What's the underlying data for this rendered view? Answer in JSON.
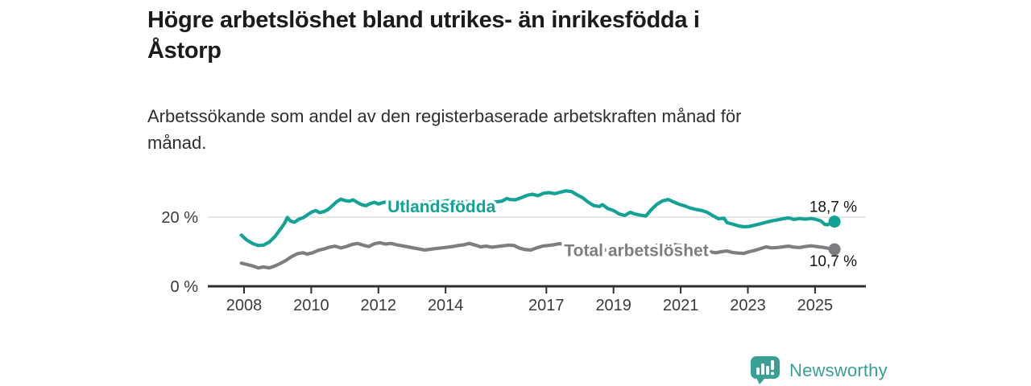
{
  "header": {
    "title_lines": [
      "Högre arbetslöshet bland utrikes- än inrikesfödda i",
      "Åstorp"
    ],
    "subtitle_lines": [
      "Arbetssökande som andel av den registerbaserade arbetskraften månad för",
      "månad."
    ]
  },
  "footer": {
    "brand": "Newsworthy",
    "brand_color": "#3aa096"
  },
  "chart_data": {
    "type": "line",
    "title": "Högre arbetslöshet bland utrikes- än inrikesfödda i Åstorp",
    "subtitle": "Arbetssökande som andel av den registerbaserade arbetskraften månad för månad.",
    "xlabel": "",
    "ylabel": "",
    "xlim": [
      2007.3,
      2026.5
    ],
    "ylim": [
      0,
      34
    ],
    "grid": "single-horizontal-at-20",
    "legend_position": "inline-on-line",
    "axis_color": "#2f2f2f",
    "grid_color": "#d8d8d8",
    "text_color": "#3b3b3b",
    "value_label_color": "#141414",
    "x_ticks": [
      2008,
      2010,
      2012,
      2014,
      2017,
      2019,
      2021,
      2023,
      2025
    ],
    "y_ticks": [
      {
        "value": 0,
        "label": "0 %"
      },
      {
        "value": 20,
        "label": "20 %"
      }
    ],
    "series": [
      {
        "name": "Utlandsfödda",
        "color": "#14a296",
        "end_label": "18,7 %",
        "end_value": 18.7,
        "end_label_side": "above",
        "label_pos": {
          "x": 2013.88,
          "y": 23.0
        },
        "points": [
          [
            2007.92,
            14.8
          ],
          [
            2008.08,
            13.4
          ],
          [
            2008.25,
            12.4
          ],
          [
            2008.42,
            11.8
          ],
          [
            2008.58,
            11.9
          ],
          [
            2008.75,
            12.8
          ],
          [
            2008.92,
            14.4
          ],
          [
            2009.08,
            16.5
          ],
          [
            2009.21,
            18.3
          ],
          [
            2009.29,
            19.9
          ],
          [
            2009.38,
            18.9
          ],
          [
            2009.5,
            18.5
          ],
          [
            2009.63,
            19.4
          ],
          [
            2009.75,
            19.8
          ],
          [
            2009.88,
            20.6
          ],
          [
            2010.0,
            21.4
          ],
          [
            2010.13,
            21.9
          ],
          [
            2010.25,
            21.3
          ],
          [
            2010.38,
            21.6
          ],
          [
            2010.5,
            22.2
          ],
          [
            2010.63,
            23.3
          ],
          [
            2010.75,
            24.4
          ],
          [
            2010.88,
            25.2
          ],
          [
            2011.0,
            24.8
          ],
          [
            2011.13,
            24.6
          ],
          [
            2011.25,
            25.0
          ],
          [
            2011.38,
            24.2
          ],
          [
            2011.5,
            23.6
          ],
          [
            2011.63,
            23.3
          ],
          [
            2011.75,
            23.9
          ],
          [
            2011.88,
            24.3
          ],
          [
            2012.0,
            23.8
          ],
          [
            2012.17,
            24.3
          ],
          [
            2012.33,
            24.5
          ],
          [
            2012.5,
            24.1
          ],
          [
            2012.67,
            24.4
          ],
          [
            2012.83,
            24.7
          ],
          [
            2013.0,
            24.3
          ],
          [
            2013.17,
            24.1
          ],
          [
            2013.33,
            24.5
          ],
          [
            2013.5,
            24.2
          ],
          [
            2013.67,
            24.6
          ],
          [
            2013.83,
            24.3
          ],
          [
            2014.0,
            24.7
          ],
          [
            2014.17,
            24.9
          ],
          [
            2014.33,
            24.5
          ],
          [
            2014.5,
            24.7
          ],
          [
            2014.67,
            24.4
          ],
          [
            2014.83,
            24.6
          ],
          [
            2015.0,
            24.3
          ],
          [
            2015.17,
            24.5
          ],
          [
            2015.33,
            24.2
          ],
          [
            2015.5,
            24.4
          ],
          [
            2015.67,
            24.6
          ],
          [
            2015.83,
            25.4
          ],
          [
            2015.92,
            25.1
          ],
          [
            2016.08,
            25.0
          ],
          [
            2016.25,
            25.6
          ],
          [
            2016.42,
            26.3
          ],
          [
            2016.58,
            26.6
          ],
          [
            2016.75,
            26.2
          ],
          [
            2016.92,
            26.9
          ],
          [
            2017.08,
            27.1
          ],
          [
            2017.25,
            26.8
          ],
          [
            2017.42,
            27.2
          ],
          [
            2017.58,
            27.6
          ],
          [
            2017.75,
            27.4
          ],
          [
            2017.92,
            26.4
          ],
          [
            2018.08,
            25.6
          ],
          [
            2018.25,
            24.3
          ],
          [
            2018.42,
            23.3
          ],
          [
            2018.58,
            23.1
          ],
          [
            2018.67,
            23.6
          ],
          [
            2018.83,
            22.5
          ],
          [
            2019.0,
            21.9
          ],
          [
            2019.17,
            20.9
          ],
          [
            2019.33,
            20.5
          ],
          [
            2019.5,
            21.4
          ],
          [
            2019.63,
            20.9
          ],
          [
            2019.79,
            20.6
          ],
          [
            2019.96,
            20.3
          ],
          [
            2020.13,
            22.2
          ],
          [
            2020.29,
            23.7
          ],
          [
            2020.46,
            24.7
          ],
          [
            2020.63,
            25.1
          ],
          [
            2020.79,
            24.4
          ],
          [
            2020.96,
            23.7
          ],
          [
            2021.13,
            23.2
          ],
          [
            2021.29,
            22.6
          ],
          [
            2021.46,
            22.2
          ],
          [
            2021.63,
            21.9
          ],
          [
            2021.79,
            21.4
          ],
          [
            2021.96,
            20.4
          ],
          [
            2022.13,
            19.5
          ],
          [
            2022.29,
            19.7
          ],
          [
            2022.38,
            18.4
          ],
          [
            2022.54,
            18.0
          ],
          [
            2022.71,
            17.5
          ],
          [
            2022.88,
            17.2
          ],
          [
            2023.04,
            17.3
          ],
          [
            2023.21,
            17.7
          ],
          [
            2023.38,
            18.1
          ],
          [
            2023.54,
            18.5
          ],
          [
            2023.71,
            18.9
          ],
          [
            2023.88,
            19.2
          ],
          [
            2024.04,
            19.5
          ],
          [
            2024.21,
            19.8
          ],
          [
            2024.38,
            19.3
          ],
          [
            2024.54,
            19.6
          ],
          [
            2024.71,
            19.4
          ],
          [
            2024.88,
            19.6
          ],
          [
            2025.04,
            19.3
          ],
          [
            2025.17,
            18.9
          ],
          [
            2025.29,
            17.9
          ],
          [
            2025.38,
            17.8
          ],
          [
            2025.46,
            18.3
          ],
          [
            2025.58,
            18.7
          ]
        ]
      },
      {
        "name": "Total arbetslöshet",
        "color": "#7d7e81",
        "end_label": "10,7 %",
        "end_value": 10.7,
        "end_label_side": "below",
        "label_pos": {
          "x": 2019.68,
          "y": 10.4
        },
        "points": [
          [
            2007.92,
            6.7
          ],
          [
            2008.08,
            6.3
          ],
          [
            2008.25,
            5.9
          ],
          [
            2008.42,
            5.3
          ],
          [
            2008.58,
            5.6
          ],
          [
            2008.75,
            5.3
          ],
          [
            2008.92,
            5.9
          ],
          [
            2009.08,
            6.6
          ],
          [
            2009.25,
            7.5
          ],
          [
            2009.42,
            8.6
          ],
          [
            2009.58,
            9.4
          ],
          [
            2009.75,
            9.7
          ],
          [
            2009.88,
            9.3
          ],
          [
            2010.04,
            9.7
          ],
          [
            2010.21,
            10.4
          ],
          [
            2010.38,
            10.8
          ],
          [
            2010.54,
            11.3
          ],
          [
            2010.71,
            11.6
          ],
          [
            2010.88,
            11.1
          ],
          [
            2011.04,
            11.5
          ],
          [
            2011.21,
            12.1
          ],
          [
            2011.38,
            12.4
          ],
          [
            2011.54,
            11.9
          ],
          [
            2011.71,
            11.5
          ],
          [
            2011.88,
            12.3
          ],
          [
            2012.04,
            12.6
          ],
          [
            2012.21,
            12.2
          ],
          [
            2012.38,
            12.4
          ],
          [
            2012.54,
            12.0
          ],
          [
            2012.71,
            11.7
          ],
          [
            2012.88,
            11.4
          ],
          [
            2013.04,
            11.1
          ],
          [
            2013.21,
            10.8
          ],
          [
            2013.38,
            10.5
          ],
          [
            2013.54,
            10.7
          ],
          [
            2013.71,
            10.9
          ],
          [
            2013.88,
            11.1
          ],
          [
            2014.04,
            11.3
          ],
          [
            2014.21,
            11.5
          ],
          [
            2014.38,
            11.8
          ],
          [
            2014.54,
            12.0
          ],
          [
            2014.71,
            12.4
          ],
          [
            2014.88,
            11.9
          ],
          [
            2015.04,
            11.4
          ],
          [
            2015.21,
            11.6
          ],
          [
            2015.38,
            11.3
          ],
          [
            2015.54,
            11.5
          ],
          [
            2015.71,
            11.7
          ],
          [
            2015.88,
            11.9
          ],
          [
            2016.04,
            11.8
          ],
          [
            2016.21,
            11.0
          ],
          [
            2016.38,
            10.6
          ],
          [
            2016.54,
            10.5
          ],
          [
            2016.71,
            11.1
          ],
          [
            2016.88,
            11.6
          ],
          [
            2017.04,
            11.8
          ],
          [
            2017.21,
            12.0
          ],
          [
            2017.38,
            12.3
          ],
          [
            2017.54,
            12.1
          ],
          [
            2017.71,
            11.8
          ],
          [
            2017.88,
            11.5
          ],
          [
            2018.04,
            11.2
          ],
          [
            2018.29,
            10.9
          ],
          [
            2018.54,
            10.7
          ],
          [
            2018.79,
            10.5
          ],
          [
            2019.04,
            10.4
          ],
          [
            2019.29,
            10.2
          ],
          [
            2019.54,
            10.1
          ],
          [
            2019.79,
            10.3
          ],
          [
            2020.04,
            10.9
          ],
          [
            2020.29,
            11.9
          ],
          [
            2020.54,
            12.3
          ],
          [
            2020.79,
            12.1
          ],
          [
            2021.04,
            11.7
          ],
          [
            2021.29,
            11.2
          ],
          [
            2021.54,
            10.8
          ],
          [
            2021.79,
            10.1
          ],
          [
            2022.04,
            9.7
          ],
          [
            2022.21,
            10.0
          ],
          [
            2022.38,
            10.2
          ],
          [
            2022.54,
            9.8
          ],
          [
            2022.71,
            9.6
          ],
          [
            2022.88,
            9.5
          ],
          [
            2023.04,
            10.0
          ],
          [
            2023.21,
            10.4
          ],
          [
            2023.38,
            10.9
          ],
          [
            2023.54,
            11.4
          ],
          [
            2023.71,
            11.1
          ],
          [
            2023.88,
            11.2
          ],
          [
            2024.04,
            11.4
          ],
          [
            2024.21,
            11.6
          ],
          [
            2024.38,
            11.3
          ],
          [
            2024.54,
            11.2
          ],
          [
            2024.71,
            11.5
          ],
          [
            2024.88,
            11.7
          ],
          [
            2025.04,
            11.5
          ],
          [
            2025.21,
            11.3
          ],
          [
            2025.38,
            11.0
          ],
          [
            2025.58,
            10.7
          ]
        ]
      }
    ]
  }
}
